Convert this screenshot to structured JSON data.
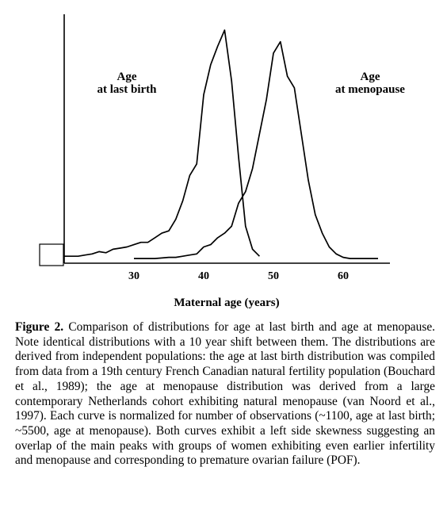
{
  "chart_data": {
    "type": "line",
    "xlabel": "Maternal age (years)",
    "x_ticks": [
      30,
      40,
      50,
      60
    ],
    "xlim": [
      19,
      67
    ],
    "ylim": [
      0,
      1
    ],
    "grid": false,
    "legend": "none",
    "series": [
      {
        "name": "Age at last birth",
        "label_lines": [
          "Age",
          "at last birth"
        ],
        "x": [
          20,
          22,
          23,
          24,
          25,
          26,
          27,
          28,
          29,
          30,
          31,
          32,
          33,
          34,
          35,
          36,
          37,
          38,
          39,
          40,
          41,
          42,
          43,
          44,
          45,
          46,
          47,
          48
        ],
        "values": [
          0.02,
          0.02,
          0.025,
          0.03,
          0.04,
          0.035,
          0.05,
          0.055,
          0.06,
          0.07,
          0.08,
          0.08,
          0.1,
          0.12,
          0.13,
          0.18,
          0.26,
          0.37,
          0.42,
          0.72,
          0.85,
          0.93,
          1.0,
          0.78,
          0.45,
          0.15,
          0.05,
          0.02
        ]
      },
      {
        "name": "Age at menopause",
        "label_lines": [
          "Age",
          "at menopause"
        ],
        "x": [
          30,
          33,
          35,
          36,
          37,
          38,
          39,
          40,
          41,
          42,
          43,
          44,
          45,
          46,
          47,
          48,
          49,
          50,
          51,
          52,
          53,
          54,
          55,
          56,
          57,
          58,
          59,
          60,
          61,
          62,
          63,
          65
        ],
        "values": [
          0.01,
          0.01,
          0.015,
          0.015,
          0.02,
          0.025,
          0.03,
          0.06,
          0.07,
          0.1,
          0.12,
          0.15,
          0.25,
          0.3,
          0.4,
          0.55,
          0.7,
          0.9,
          0.95,
          0.8,
          0.75,
          0.55,
          0.35,
          0.2,
          0.12,
          0.06,
          0.03,
          0.015,
          0.01,
          0.01,
          0.01,
          0.01
        ]
      }
    ]
  },
  "caption": {
    "label": "Figure 2.",
    "text": "Comparison of distributions for age at last birth and age at menopause. Note identical distributions with a 10 year shift between them. The distributions are derived from independent populations: the age at last birth distribution was compiled from data from a 19th century French Canadian natural fertility population (Bouchard et al., 1989); the age at menopause distribution was derived from a large contemporary Netherlands cohort exhibiting natural menopause (van Noord et al., 1997). Each curve is normalized for number of observations (~1100, age at last birth; ~5500, age at menopause). Both curves exhibit a left side skewness suggesting an overlap of the main peaks with groups of women exhibiting even earlier infertility and menopause and corresponding to premature ovarian failure (POF)."
  }
}
